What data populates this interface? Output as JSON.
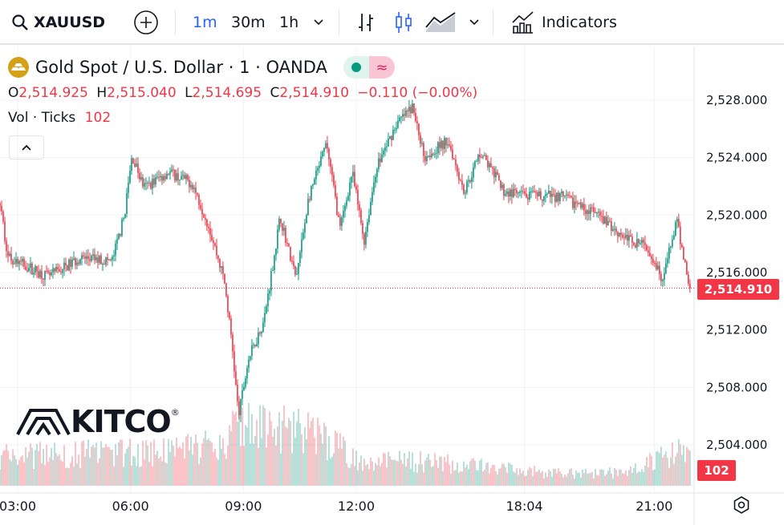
{
  "toolbar": {
    "symbol": "XAUUSD",
    "intervals": [
      "1m",
      "30m",
      "1h"
    ],
    "active_interval": "1m",
    "indicators_label": "Indicators",
    "accent": "#2962ff"
  },
  "legend": {
    "title": "Gold Spot / U.S. Dollar · 1 · OANDA",
    "o_label": "O",
    "o": "2,514.925",
    "h_label": "H",
    "h": "2,515.040",
    "l_label": "L",
    "l": "2,514.695",
    "c_label": "C",
    "c": "2,514.910",
    "change": "−0.110 (−0.00%)",
    "vol_label": "Vol · Ticks",
    "vol_value": "102"
  },
  "watermark": {
    "text": "KITCO",
    "mark": "®"
  },
  "colors": {
    "up": "#089981",
    "down": "#f23645"
  },
  "chart_data": {
    "type": "candlestick",
    "title": "Gold Spot / U.S. Dollar · 1 · OANDA",
    "ylim": [
      2502.5,
      2529.5
    ],
    "ytick_values": [
      2504,
      2508,
      2512,
      2516,
      2520,
      2524,
      2528
    ],
    "ytick_labels": [
      "2,504.000",
      "2,508.000",
      "2,512.000",
      "2,516.000",
      "2,520.000",
      "2,524.000",
      "2,528.000"
    ],
    "xlim": [
      2.53,
      21.3
    ],
    "xticks": [
      {
        "label": "03:00",
        "x": 3.0
      },
      {
        "label": "06:00",
        "x": 6.0
      },
      {
        "label": "09:00",
        "x": 9.0
      },
      {
        "label": "12:00",
        "x": 12.0
      },
      {
        "label": "18:04",
        "x": 16.47
      },
      {
        "label": "21:00",
        "x": 19.92
      }
    ],
    "last_price": "2,514.910",
    "last_price_value": 2514.91,
    "last_volume": "102",
    "price_path": [
      [
        2.53,
        2520.8
      ],
      [
        2.74,
        2517.1
      ],
      [
        3.81,
        2515.7
      ],
      [
        4.66,
        2517.0
      ],
      [
        5.51,
        2516.8
      ],
      [
        5.83,
        2519.9
      ],
      [
        6.04,
        2524.1
      ],
      [
        6.36,
        2521.9
      ],
      [
        7.0,
        2523.0
      ],
      [
        7.64,
        2522.2
      ],
      [
        8.06,
        2519.4
      ],
      [
        8.49,
        2515.5
      ],
      [
        8.7,
        2511.0
      ],
      [
        8.87,
        2506.0
      ],
      [
        9.13,
        2509.9
      ],
      [
        9.55,
        2512.7
      ],
      [
        9.98,
        2519.9
      ],
      [
        10.4,
        2515.5
      ],
      [
        10.72,
        2521.0
      ],
      [
        11.21,
        2525.0
      ],
      [
        11.57,
        2519.0
      ],
      [
        11.89,
        2523.0
      ],
      [
        12.21,
        2518.2
      ],
      [
        12.53,
        2523.3
      ],
      [
        13.06,
        2526.3
      ],
      [
        13.49,
        2527.5
      ],
      [
        13.81,
        2524.1
      ],
      [
        14.45,
        2525.2
      ],
      [
        14.87,
        2521.6
      ],
      [
        15.3,
        2524.4
      ],
      [
        15.94,
        2521.6
      ],
      [
        16.57,
        2521.3
      ],
      [
        17.43,
        2521.3
      ],
      [
        18.28,
        2520.2
      ],
      [
        19.13,
        2518.5
      ],
      [
        19.77,
        2517.7
      ],
      [
        20.15,
        2515.5
      ],
      [
        20.51,
        2519.6
      ],
      [
        20.87,
        2514.91
      ]
    ],
    "volume_envelope": [
      [
        2.53,
        45
      ],
      [
        6.0,
        50
      ],
      [
        8.5,
        60
      ],
      [
        8.9,
        105
      ],
      [
        9.5,
        85
      ],
      [
        10.5,
        85
      ],
      [
        11.2,
        70
      ],
      [
        12.0,
        40
      ],
      [
        14.0,
        35
      ],
      [
        17.0,
        20
      ],
      [
        19.0,
        20
      ],
      [
        19.8,
        35
      ],
      [
        20.5,
        50
      ],
      [
        20.87,
        45
      ]
    ]
  }
}
